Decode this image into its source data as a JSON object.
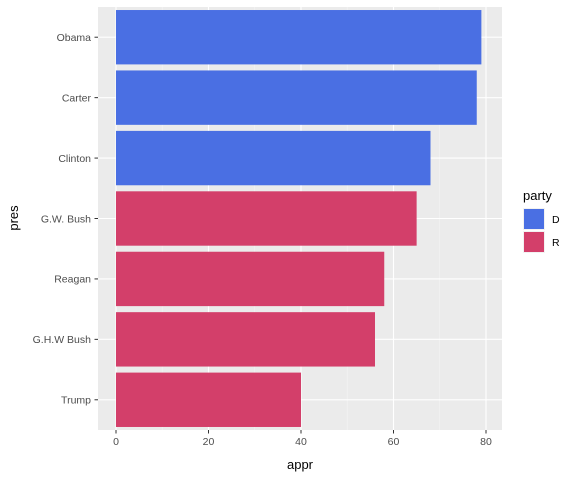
{
  "chart_data": {
    "type": "bar",
    "orientation": "horizontal",
    "categories": [
      "Obama",
      "Carter",
      "Clinton",
      "G.W. Bush",
      "Reagan",
      "G.H.W Bush",
      "Trump"
    ],
    "values": [
      79,
      78,
      68,
      65,
      58,
      56,
      40
    ],
    "party": [
      "D",
      "D",
      "D",
      "R",
      "R",
      "R",
      "R"
    ],
    "xlabel": "appr",
    "ylabel": "pres",
    "xlim": [
      0,
      80
    ],
    "xticks": [
      "0",
      "20",
      "40",
      "60",
      "80"
    ],
    "grid": true,
    "legend": {
      "title": "party",
      "placement": "right",
      "entries": [
        {
          "label": "D",
          "color": "#4a6fe3"
        },
        {
          "label": "R",
          "color": "#d33f6a"
        }
      ]
    },
    "colors": {
      "panel_background": "#ebebeb",
      "grid_major": "#ffffff",
      "grid_minor": "#f5f5f5"
    }
  }
}
